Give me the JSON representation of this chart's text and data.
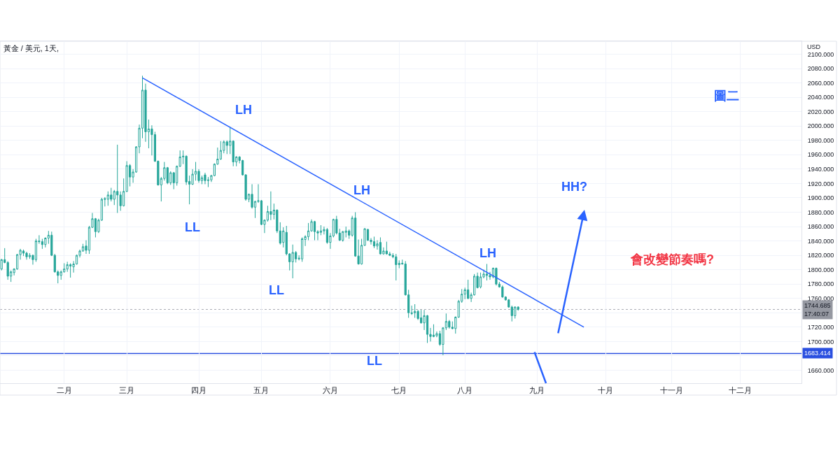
{
  "chart_data": {
    "type": "candlestick",
    "title": "黃金 / 美元, 1天,",
    "ylabel": "USD",
    "color": "#26a69a",
    "categories": [
      null,
      null,
      null,
      null,
      null,
      null,
      null,
      null,
      null,
      null,
      null,
      null,
      null,
      null,
      null,
      null,
      null,
      null,
      null,
      null,
      "二月",
      null,
      null,
      null,
      null,
      null,
      null,
      null,
      null,
      null,
      null,
      null,
      null,
      null,
      null,
      null,
      null,
      null,
      null,
      null,
      "三月",
      null,
      null,
      null,
      null,
      null,
      null,
      null,
      null,
      null,
      null,
      null,
      null,
      null,
      null,
      null,
      null,
      null,
      null,
      null,
      null,
      null,
      null,
      "四月",
      null,
      null,
      null,
      null,
      null,
      null,
      null,
      null,
      null,
      null,
      null,
      null,
      null,
      null,
      null,
      null,
      null,
      null,
      null,
      "五月",
      null,
      null,
      null,
      null,
      null,
      null,
      null,
      null,
      null,
      null,
      null,
      null,
      null,
      null,
      null,
      null,
      null,
      null,
      null,
      null,
      null,
      "六月",
      null,
      null,
      null,
      null,
      null,
      null,
      null,
      null,
      null,
      null,
      null,
      null,
      null,
      null,
      null,
      null,
      null,
      null,
      null,
      null,
      null,
      "七月",
      null,
      null,
      null,
      null,
      null,
      null,
      null,
      null,
      null,
      null,
      null,
      null,
      null,
      null,
      null,
      null,
      null,
      null,
      null,
      null,
      "八月",
      null,
      null,
      null,
      null,
      null,
      null,
      null,
      null,
      null,
      null,
      null,
      null,
      null,
      null,
      null,
      null,
      null,
      null,
      null,
      null,
      null,
      null,
      "九月",
      null,
      null,
      null,
      null,
      null,
      null,
      null,
      null,
      null,
      null,
      null,
      null,
      null,
      null,
      null,
      null,
      null,
      null,
      null,
      null,
      null,
      "十月",
      null,
      null,
      null,
      null,
      null,
      null,
      null,
      null,
      null,
      null,
      null,
      null,
      null,
      null,
      null,
      null,
      null,
      null,
      null,
      null,
      "十一月",
      null,
      null,
      null,
      null,
      null,
      null,
      null,
      null,
      null,
      null,
      null,
      null,
      null,
      null,
      null,
      null,
      null,
      null,
      null,
      null,
      null,
      "十二月",
      null,
      null,
      null,
      null,
      null,
      null,
      null,
      null,
      null,
      null,
      null,
      null,
      null,
      null,
      null,
      null,
      null,
      null,
      null
    ],
    "ohlc": [
      [
        1801,
        1815,
        1799,
        1814
      ],
      [
        1814,
        1830,
        1809,
        1810
      ],
      [
        1810,
        1812,
        1786,
        1791
      ],
      [
        1791,
        1799,
        1783,
        1797
      ],
      [
        1796,
        1802,
        1792,
        1801
      ],
      [
        1801,
        1822,
        1800,
        1821
      ],
      [
        1821,
        1829,
        1814,
        1827
      ],
      [
        1826,
        1828,
        1819,
        1823
      ],
      [
        1823,
        1825,
        1814,
        1818
      ],
      [
        1818,
        1823,
        1815,
        1820
      ],
      [
        1820,
        1821,
        1807,
        1814
      ],
      [
        1814,
        1843,
        1811,
        1840
      ],
      [
        1840,
        1848,
        1836,
        1839
      ],
      [
        1839,
        1843,
        1829,
        1835
      ],
      [
        1835,
        1845,
        1831,
        1844
      ],
      [
        1844,
        1854,
        1836,
        1848
      ],
      [
        1848,
        1853,
        1819,
        1820
      ],
      [
        1820,
        1822,
        1796,
        1797
      ],
      [
        1797,
        1799,
        1781,
        1792
      ],
      [
        1792,
        1799,
        1786,
        1797
      ],
      [
        1797,
        1809,
        1796,
        1801
      ],
      [
        1801,
        1811,
        1797,
        1807
      ],
      [
        1807,
        1809,
        1789,
        1805
      ],
      [
        1804,
        1812,
        1796,
        1808
      ],
      [
        1808,
        1821,
        1807,
        1820
      ],
      [
        1820,
        1828,
        1817,
        1826
      ],
      [
        1826,
        1836,
        1825,
        1832
      ],
      [
        1833,
        1841,
        1822,
        1827
      ],
      [
        1827,
        1861,
        1822,
        1859
      ],
      [
        1859,
        1879,
        1858,
        1871
      ],
      [
        1871,
        1872,
        1845,
        1853
      ],
      [
        1853,
        1871,
        1851,
        1869
      ],
      [
        1869,
        1900,
        1868,
        1898
      ],
      [
        1899,
        1901,
        1888,
        1898
      ],
      [
        1898,
        1909,
        1889,
        1904
      ],
      [
        1904,
        1914,
        1895,
        1898
      ],
      [
        1898,
        1911,
        1890,
        1909
      ],
      [
        1909,
        1974,
        1879,
        1904
      ],
      [
        1904,
        1909,
        1882,
        1889
      ],
      [
        1889,
        1927,
        1888,
        1909
      ],
      [
        1909,
        1951,
        1908,
        1945
      ],
      [
        1945,
        1947,
        1916,
        1929
      ],
      [
        1929,
        1940,
        1921,
        1936
      ],
      [
        1936,
        1972,
        1935,
        1971
      ],
      [
        1971,
        2002,
        1962,
        1997
      ],
      [
        1997,
        2070,
        1983,
        2050
      ],
      [
        2050,
        2059,
        1978,
        1992
      ],
      [
        1992,
        2009,
        1969,
        1996
      ],
      [
        1996,
        2001,
        1959,
        1988
      ],
      [
        1988,
        1992,
        1950,
        1951
      ],
      [
        1951,
        1952,
        1917,
        1918
      ],
      [
        1918,
        1929,
        1895,
        1927
      ],
      [
        1927,
        1950,
        1924,
        1942
      ],
      [
        1942,
        1943,
        1919,
        1921
      ],
      [
        1921,
        1937,
        1918,
        1935
      ],
      [
        1935,
        1936,
        1912,
        1921
      ],
      [
        1921,
        1945,
        1917,
        1944
      ],
      [
        1944,
        1966,
        1943,
        1957
      ],
      [
        1957,
        1966,
        1947,
        1958
      ],
      [
        1958,
        1959,
        1918,
        1922
      ],
      [
        1923,
        1931,
        1891,
        1919
      ],
      [
        1919,
        1940,
        1918,
        1933
      ],
      [
        1933,
        1950,
        1924,
        1937
      ],
      [
        1937,
        1940,
        1921,
        1924
      ],
      [
        1924,
        1931,
        1919,
        1928
      ],
      [
        1932,
        1935,
        1919,
        1924
      ],
      [
        1924,
        1929,
        1915,
        1925
      ],
      [
        1925,
        1932,
        1922,
        1931
      ],
      [
        1931,
        1948,
        1930,
        1947
      ],
      [
        1947,
        1970,
        1946,
        1954
      ],
      [
        1954,
        1979,
        1953,
        1966
      ],
      [
        1966,
        1980,
        1962,
        1978
      ],
      [
        1978,
        1980,
        1961,
        1973
      ],
      [
        1973,
        1999,
        1961,
        1979
      ],
      [
        1979,
        1980,
        1944,
        1950
      ],
      [
        1950,
        1958,
        1944,
        1957
      ],
      [
        1957,
        1958,
        1948,
        1952
      ],
      [
        1952,
        1953,
        1931,
        1932
      ],
      [
        1932,
        1933,
        1896,
        1898
      ],
      [
        1898,
        1906,
        1894,
        1905
      ],
      [
        1905,
        1919,
        1885,
        1887
      ],
      [
        1887,
        1896,
        1872,
        1895
      ],
      [
        1895,
        1919,
        1893,
        1896
      ],
      [
        1896,
        1897,
        1862,
        1863
      ],
      [
        1863,
        1870,
        1851,
        1869
      ],
      [
        1869,
        1889,
        1867,
        1881
      ],
      [
        1881,
        1909,
        1869,
        1877
      ],
      [
        1877,
        1892,
        1870,
        1883
      ],
      [
        1883,
        1884,
        1851,
        1854
      ],
      [
        1854,
        1866,
        1835,
        1837
      ],
      [
        1838,
        1859,
        1831,
        1854
      ],
      [
        1852,
        1861,
        1820,
        1822
      ],
      [
        1822,
        1823,
        1799,
        1811
      ],
      [
        1811,
        1835,
        1788,
        1824
      ],
      [
        1824,
        1826,
        1810,
        1815
      ],
      [
        1815,
        1820,
        1813,
        1816
      ],
      [
        1815,
        1845,
        1811,
        1843
      ],
      [
        1842,
        1848,
        1833,
        1846
      ],
      [
        1846,
        1865,
        1841,
        1854
      ],
      [
        1854,
        1870,
        1853,
        1867
      ],
      [
        1867,
        1868,
        1841,
        1853
      ],
      [
        1853,
        1855,
        1841,
        1851
      ],
      [
        1852,
        1862,
        1848,
        1854
      ],
      [
        1854,
        1860,
        1849,
        1856
      ],
      [
        1856,
        1858,
        1836,
        1838
      ],
      [
        1838,
        1851,
        1829,
        1847
      ],
      [
        1847,
        1871,
        1845,
        1870
      ],
      [
        1870,
        1875,
        1849,
        1851
      ],
      [
        1851,
        1857,
        1840,
        1841
      ],
      [
        1841,
        1854,
        1839,
        1853
      ],
      [
        1852,
        1860,
        1845,
        1854
      ],
      [
        1854,
        1856,
        1843,
        1848
      ],
      [
        1848,
        1875,
        1846,
        1872
      ],
      [
        1872,
        1880,
        1818,
        1819
      ],
      [
        1819,
        1842,
        1807,
        1808
      ],
      [
        1808,
        1843,
        1807,
        1834
      ],
      [
        1834,
        1858,
        1833,
        1857
      ],
      [
        1856,
        1857,
        1840,
        1841
      ],
      [
        1841,
        1844,
        1835,
        1839
      ],
      [
        1839,
        1846,
        1830,
        1833
      ],
      [
        1833,
        1841,
        1828,
        1836
      ],
      [
        1838,
        1845,
        1821,
        1822
      ],
      [
        1822,
        1831,
        1821,
        1826
      ],
      [
        1826,
        1839,
        1821,
        1822
      ],
      [
        1822,
        1825,
        1819,
        1820
      ],
      [
        1820,
        1823,
        1816,
        1818
      ],
      [
        1818,
        1822,
        1785,
        1807
      ],
      [
        1807,
        1813,
        1802,
        1809
      ],
      [
        1809,
        1814,
        1807,
        1808
      ],
      [
        1808,
        1812,
        1764,
        1765
      ],
      [
        1765,
        1772,
        1733,
        1740
      ],
      [
        1740,
        1750,
        1737,
        1739
      ],
      [
        1740,
        1752,
        1733,
        1742
      ],
      [
        1742,
        1744,
        1730,
        1732
      ],
      [
        1733,
        1744,
        1725,
        1726
      ],
      [
        1726,
        1744,
        1716,
        1736
      ],
      [
        1736,
        1737,
        1698,
        1710
      ],
      [
        1710,
        1719,
        1700,
        1707
      ],
      [
        1709,
        1724,
        1706,
        1707
      ],
      [
        1708,
        1714,
        1706,
        1711
      ],
      [
        1711,
        1715,
        1694,
        1696
      ],
      [
        1696,
        1720,
        1681,
        1719
      ],
      [
        1719,
        1739,
        1716,
        1728
      ],
      [
        1728,
        1730,
        1718,
        1720
      ],
      [
        1720,
        1728,
        1717,
        1718
      ],
      [
        1718,
        1735,
        1711,
        1734
      ],
      [
        1734,
        1758,
        1733,
        1756
      ],
      [
        1756,
        1773,
        1754,
        1766
      ],
      [
        1766,
        1775,
        1759,
        1772
      ],
      [
        1772,
        1786,
        1759,
        1760
      ],
      [
        1760,
        1768,
        1755,
        1765
      ],
      [
        1765,
        1794,
        1764,
        1791
      ],
      [
        1791,
        1796,
        1774,
        1775
      ],
      [
        1776,
        1796,
        1774,
        1790
      ],
      [
        1790,
        1800,
        1788,
        1794
      ],
      [
        1794,
        1808,
        1785,
        1792
      ],
      [
        1792,
        1797,
        1786,
        1790
      ],
      [
        1790,
        1803,
        1788,
        1802
      ],
      [
        1802,
        1803,
        1778,
        1780
      ],
      [
        1780,
        1783,
        1775,
        1776
      ],
      [
        1776,
        1778,
        1761,
        1762
      ],
      [
        1762,
        1763,
        1757,
        1758
      ],
      [
        1758,
        1759,
        1747,
        1748
      ],
      [
        1748,
        1750,
        1728,
        1736
      ],
      [
        1736,
        1749,
        1732,
        1748
      ],
      [
        1748,
        1749,
        1743,
        1744.685
      ],
      null,
      null,
      null,
      null,
      null,
      null,
      null,
      null,
      null,
      null,
      null,
      null,
      null,
      null,
      null,
      null,
      null,
      null,
      null,
      null,
      null,
      null,
      null,
      null,
      null,
      null,
      null,
      null,
      null,
      null,
      null,
      null,
      null,
      null,
      null,
      null,
      null,
      null,
      null,
      null,
      null,
      null,
      null,
      null,
      null,
      null,
      null,
      null,
      null,
      null,
      null,
      null,
      null,
      null,
      null,
      null,
      null,
      null,
      null,
      null,
      null,
      null,
      null,
      null,
      null,
      null,
      null,
      null,
      null,
      null,
      null,
      null,
      null,
      null,
      null,
      null,
      null,
      null,
      null,
      null,
      null,
      null,
      null,
      null,
      null,
      null,
      null,
      null,
      null,
      null
    ],
    "series": [
      {
        "type": "line",
        "color": "#2962ff",
        "values": [
          null,
          null,
          null,
          null,
          null,
          null,
          null,
          null,
          null,
          null,
          null,
          null,
          null,
          null,
          null,
          null,
          null,
          null,
          null,
          null,
          null,
          null,
          null,
          null,
          null,
          null,
          null,
          null,
          null,
          null,
          null,
          null,
          null,
          null,
          null,
          null,
          null,
          null,
          null,
          null,
          null,
          null,
          null,
          null,
          null,
          2067,
          null,
          null,
          null,
          null,
          null,
          null,
          null,
          null,
          null,
          null,
          null,
          null,
          null,
          null,
          null,
          null,
          null,
          null,
          null,
          null,
          null,
          null,
          null,
          null,
          null,
          null,
          null,
          null,
          null,
          null,
          null,
          null,
          null,
          null,
          null,
          null,
          null,
          null,
          null,
          null,
          null,
          null,
          null,
          null,
          null,
          null,
          null,
          null,
          null,
          null,
          null,
          null,
          null,
          null,
          null,
          null,
          null,
          null,
          null,
          null,
          null,
          null,
          null,
          null,
          null,
          null,
          null,
          null,
          null,
          null,
          null,
          null,
          null,
          null,
          null,
          null,
          null,
          null,
          null,
          null,
          null,
          null,
          null,
          null,
          null,
          null,
          null,
          null,
          null,
          null,
          null,
          null,
          null,
          null,
          null,
          null,
          null,
          null,
          null,
          null,
          null,
          null,
          null,
          null,
          null,
          null,
          null,
          null,
          null,
          null,
          null,
          null,
          null,
          null,
          null,
          null,
          null,
          null,
          null,
          null,
          null,
          null,
          null,
          null,
          null,
          null,
          null,
          null,
          null,
          null,
          null,
          null,
          null,
          null,
          null,
          null,
          null,
          null,
          null,
          null,
          1720,
          null,
          null,
          null,
          null,
          null,
          null,
          null,
          null,
          null,
          null,
          null,
          null,
          null,
          null,
          null,
          null,
          null,
          null,
          null,
          null,
          null,
          null,
          null,
          null,
          null,
          null,
          null,
          null,
          null,
          null,
          null,
          null,
          null,
          null,
          null,
          null,
          null,
          null,
          null,
          null,
          null,
          null,
          null,
          null,
          null,
          null,
          null,
          null,
          null,
          null,
          null,
          null,
          null,
          null,
          null,
          null,
          null,
          null,
          null,
          null,
          null,
          null,
          null,
          null,
          null,
          null,
          null,
          null,
          null
        ]
      }
    ],
    "ylim": [
      1642,
      2118
    ],
    "yticks": [
      {
        "value": 1660,
        "label": "1660.000"
      },
      {
        "value": 1680,
        "label": null
      },
      {
        "value": 1700,
        "label": "1700.000"
      },
      {
        "value": 1720,
        "label": "1720.000"
      },
      {
        "value": 1740,
        "label": null
      },
      {
        "value": 1760,
        "label": "1760.000"
      },
      {
        "value": 1780,
        "label": "1780.000"
      },
      {
        "value": 1800,
        "label": "1800.000"
      },
      {
        "value": 1820,
        "label": "1820.000"
      },
      {
        "value": 1840,
        "label": "1840.000"
      },
      {
        "value": 1860,
        "label": "1860.000"
      },
      {
        "value": 1880,
        "label": "1880.000"
      },
      {
        "value": 1900,
        "label": "1900.000"
      },
      {
        "value": 1920,
        "label": "1920.000"
      },
      {
        "value": 1940,
        "label": "1940.000"
      },
      {
        "value": 1960,
        "label": "1960.000"
      },
      {
        "value": 1980,
        "label": "1980.000"
      },
      {
        "value": 2000,
        "label": "2000.000"
      },
      {
        "value": 2020,
        "label": "2020.000"
      },
      {
        "value": 2040,
        "label": "2040.000"
      },
      {
        "value": 2060,
        "label": "2060.000"
      },
      {
        "value": 2080,
        "label": "2080.000"
      },
      {
        "value": 2100,
        "label": "2100.000"
      }
    ],
    "grid": true,
    "ref_lines": [
      {
        "axis": "y",
        "value": 1744.685,
        "label": "1744.685\n17:40:07",
        "color": "#9598a1",
        "line_style": "dotted"
      },
      {
        "axis": "y",
        "value": 1683.414,
        "label": "1683.414",
        "color": "#2a4fe0",
        "line_style": "solid"
      }
    ],
    "annotations": [
      "LH",
      "LL",
      "LH",
      "LL",
      "LH",
      "LL",
      "HH?",
      "會改變節奏嗎?",
      "圖二"
    ]
  }
}
